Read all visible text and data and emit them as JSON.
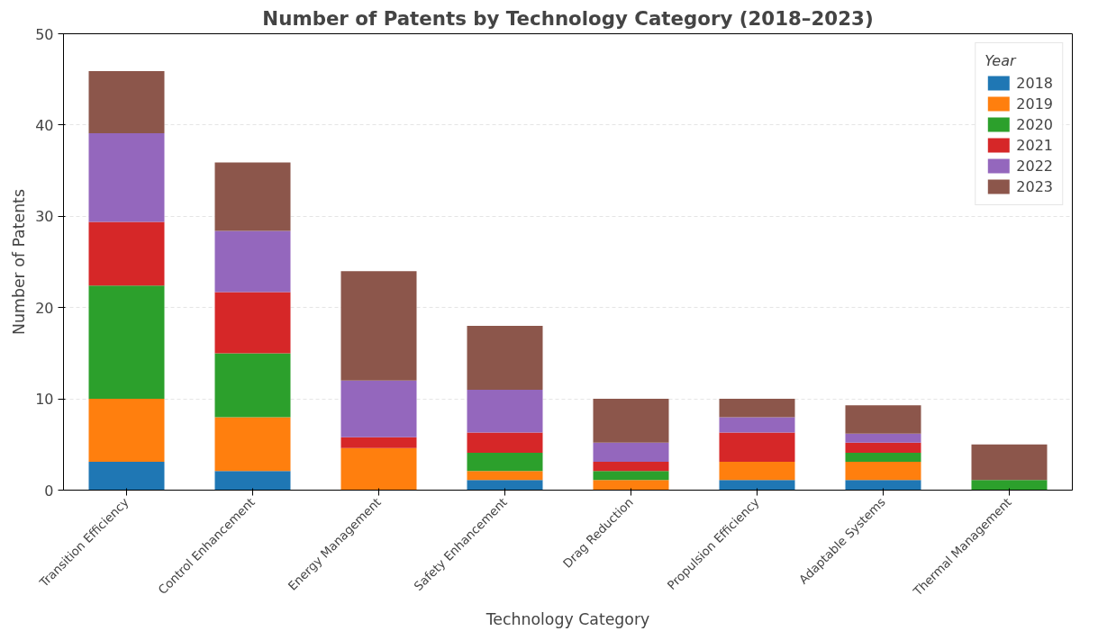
{
  "chart_data": {
    "type": "bar",
    "stacked": true,
    "title": "Number of Patents by Technology Category (2018–2023)",
    "xlabel": "Technology Category",
    "ylabel": "Number of Patents",
    "legend_title": "Year",
    "legend": "top right",
    "grid": "y",
    "categories": [
      "Transition Efficiency",
      "Control Enhancement",
      "Energy Management",
      "Safety Enhancement",
      "Drag Reduction",
      "Propulsion Efficiency",
      "Adaptable Systems",
      "Thermal Management"
    ],
    "ylim": [
      0,
      50
    ],
    "yticks": [
      0,
      10,
      20,
      30,
      40,
      50
    ],
    "series": [
      {
        "name": "2018",
        "color": "#1f77b4",
        "values": [
          3.1,
          2.1,
          0,
          1.1,
          0,
          1.1,
          1.1,
          0
        ]
      },
      {
        "name": "2019",
        "color": "#ff7f0e",
        "values": [
          6.9,
          5.9,
          4.6,
          1.0,
          1.1,
          2.0,
          2.0,
          0
        ]
      },
      {
        "name": "2020",
        "color": "#2ca02c",
        "values": [
          12.4,
          7.0,
          0,
          2.0,
          1.0,
          0,
          1.0,
          1.1
        ]
      },
      {
        "name": "2021",
        "color": "#d62728",
        "values": [
          7.0,
          6.7,
          1.2,
          2.2,
          1.0,
          3.2,
          1.1,
          0
        ]
      },
      {
        "name": "2022",
        "color": "#9467bd",
        "values": [
          9.7,
          6.7,
          6.2,
          4.7,
          2.1,
          1.7,
          1.0,
          0
        ]
      },
      {
        "name": "2023",
        "color": "#8c564b",
        "values": [
          6.8,
          7.5,
          12.0,
          7.0,
          4.8,
          2.0,
          3.1,
          3.9
        ]
      }
    ]
  }
}
